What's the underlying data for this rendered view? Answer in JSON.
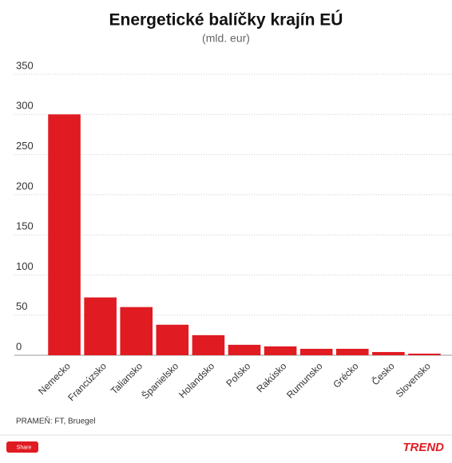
{
  "chart_data": {
    "type": "bar",
    "title": "Energetické balíčky krajín EÚ",
    "subtitle": "(mld. eur)",
    "categories": [
      "Nemecko",
      "Francúzsko",
      "Taliansko",
      "Španielsko",
      "Holandsko",
      "Poľsko",
      "Rakúsko",
      "Rumunsko",
      "Grécko",
      "Česko",
      "Slovensko"
    ],
    "values": [
      300,
      72,
      60,
      38,
      25,
      13,
      11,
      8,
      8,
      4,
      2
    ],
    "color": "#e01b22",
    "ylim": [
      0,
      350
    ],
    "yticks": [
      0,
      50,
      100,
      150,
      200,
      250,
      300,
      350
    ],
    "grid": true,
    "source": "PRAMEŇ: FT, Bruegel"
  },
  "footer": {
    "share": "Share",
    "brand": "TREND"
  }
}
